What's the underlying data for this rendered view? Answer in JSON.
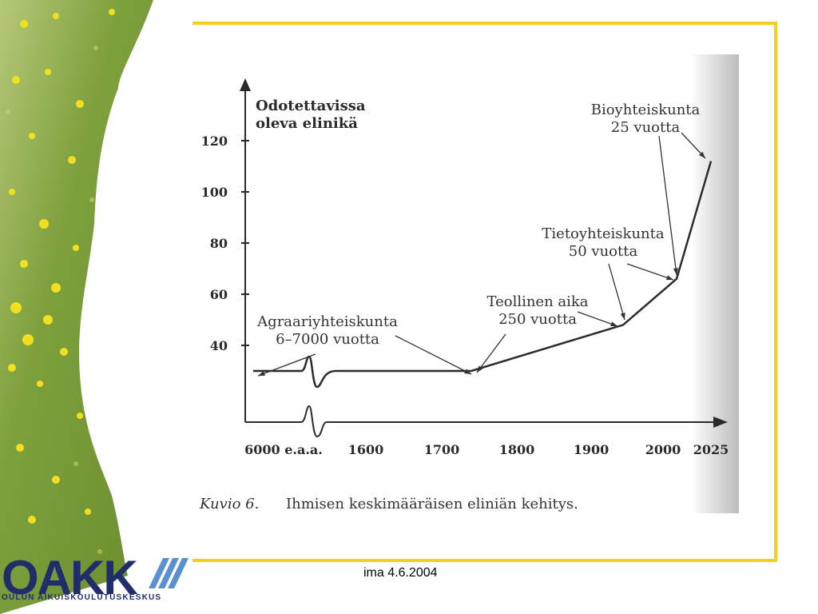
{
  "footer": {
    "date": "ima 4.6.2004"
  },
  "logo": {
    "word": "OAKK",
    "subtitle": "OULUN AIKUISKOULUTUSKESKUS"
  },
  "colors": {
    "frame": "#f5cf1a",
    "logo": "#1f2d6b",
    "ink": "#2b2b2b"
  },
  "chart_data": {
    "type": "line",
    "ylabel": [
      "Odotettavissa",
      "oleva elinikä"
    ],
    "y_ticks": [
      40,
      60,
      80,
      100,
      120
    ],
    "x_ticks": [
      "6000 e.a.a.",
      "1600",
      "1700",
      "1800",
      "1900",
      "2000",
      "2025"
    ],
    "caption_label": "Kuvio 6.",
    "caption_text": "Ihmisen keskimääräisen eliniän kehitys.",
    "axis_break": true,
    "x": [
      "6000 e.a.a.",
      "1600",
      "1740",
      "1940",
      "2010",
      "2025"
    ],
    "values": [
      30,
      30,
      30,
      48,
      66,
      112
    ],
    "annotations": [
      {
        "lines": [
          "Agraariyhteiskunta",
          "6–7000 vuotta"
        ]
      },
      {
        "lines": [
          "Teollinen aika",
          "250 vuotta"
        ]
      },
      {
        "lines": [
          "Tietoyhteiskunta",
          "50 vuotta"
        ]
      },
      {
        "lines": [
          "Bioyhteiskunta",
          "25 vuotta"
        ]
      }
    ]
  }
}
